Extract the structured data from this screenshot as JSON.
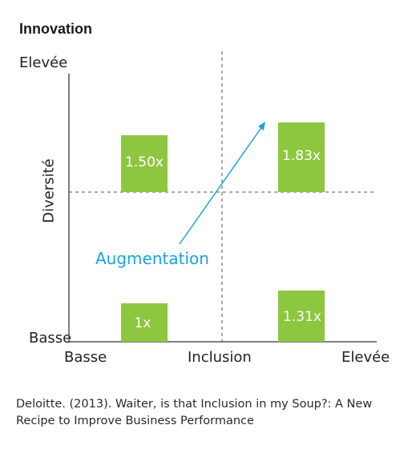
{
  "title": "Innovation",
  "y_axis": {
    "title": "Diversité",
    "high": "Elevée",
    "low": "Basse"
  },
  "x_axis": {
    "title": "Inclusion",
    "low": "Basse",
    "high": "Elevée"
  },
  "quadrants": [
    {
      "name": "low-inclusion-high-diversity",
      "value": "1.50x"
    },
    {
      "name": "high-inclusion-high-diversity",
      "value": "1.83x"
    },
    {
      "name": "low-inclusion-low-diversity",
      "value": "1x"
    },
    {
      "name": "high-inclusion-low-diversity",
      "value": "1.31x"
    }
  ],
  "arrow_label": "Augmentation",
  "colors": {
    "bar": "#8dc63f",
    "arrow": "#1aa3dd",
    "axis": "#555555"
  },
  "citation": "Deloitte. (2013). Waiter, is that Inclusion in my Soup?: A New Recipe to Improve Business Performance"
}
